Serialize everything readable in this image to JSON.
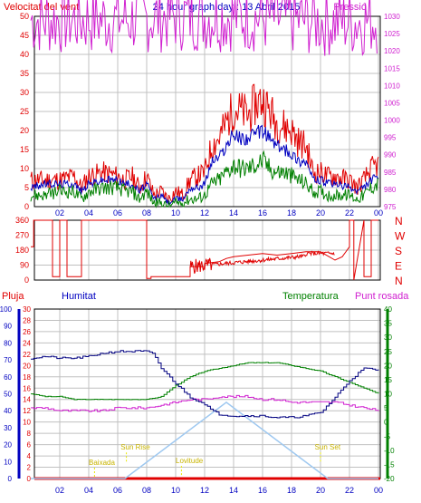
{
  "header": {
    "title": "24 hour graph day : 13 Abril 2015",
    "left_label": "Velocitat del vent",
    "right_label": "Pressió"
  },
  "colors": {
    "red": "#e00000",
    "blue": "#0000c0",
    "green": "#008000",
    "magenta": "#d020d0",
    "navy": "#000080",
    "sky": "#9ec8f0",
    "yellow": "#e8e800",
    "grid": "#c0c0c0"
  },
  "time_ticks": [
    "02",
    "04",
    "06",
    "08",
    "10",
    "12",
    "14",
    "16",
    "18",
    "20",
    "22",
    "00"
  ],
  "chart_data": [
    {
      "type": "line",
      "name": "wind",
      "x_range_hours": [
        0,
        24
      ],
      "ylim": [
        0,
        50
      ],
      "y_ticks": [
        "0",
        "5",
        "10",
        "15",
        "20",
        "25",
        "30",
        "35",
        "40",
        "45",
        "50"
      ],
      "y2lim": [
        975,
        1030
      ],
      "y2_ticks": [
        "975",
        "980",
        "985",
        "990",
        "995",
        "1000",
        "1005",
        "1010",
        "1015",
        "1020",
        "1025",
        "1030"
      ],
      "series": [
        {
          "role": "gust",
          "color": "red",
          "x": [
            0,
            1,
            2,
            3,
            3.5,
            4,
            5,
            6,
            6.5,
            7,
            7.5,
            8,
            8.5,
            9,
            9.5,
            10,
            10.5,
            11,
            11.5,
            12,
            12.5,
            13,
            13.5,
            14,
            14.5,
            15,
            15.5,
            16,
            16.5,
            17,
            17.5,
            18,
            18.5,
            19,
            19.5,
            20,
            20.5,
            21,
            22,
            22.5,
            23,
            23.5,
            24
          ],
          "y": [
            7,
            7,
            7,
            8,
            5,
            8,
            9,
            8,
            7,
            8,
            5,
            8,
            3,
            4,
            2,
            4,
            3,
            7,
            8,
            9,
            16,
            18,
            22,
            26,
            25,
            24,
            27,
            28,
            25,
            22,
            21,
            20,
            17,
            16,
            9,
            9,
            8,
            8,
            7,
            5,
            7,
            10,
            11
          ]
        },
        {
          "role": "average",
          "color": "blue",
          "x": [
            0,
            1,
            2,
            3,
            3.5,
            4,
            5,
            6,
            6.5,
            7,
            7.5,
            8,
            8.5,
            9,
            9.5,
            10,
            10.5,
            11,
            11.5,
            12,
            12.5,
            13,
            13.5,
            14,
            14.5,
            15,
            15.5,
            16,
            16.5,
            17,
            17.5,
            18,
            18.5,
            19,
            19.5,
            20,
            20.5,
            21,
            22,
            22.5,
            23,
            23.5,
            24
          ],
          "y": [
            5,
            6,
            6,
            6,
            4,
            6,
            7,
            7,
            6,
            6,
            4,
            6,
            2,
            3,
            1,
            2,
            2,
            5,
            5,
            6,
            12,
            13,
            16,
            19,
            18,
            18,
            19,
            20,
            18,
            16,
            15,
            14,
            12,
            12,
            7,
            7,
            6,
            6,
            5,
            4,
            5,
            7,
            8
          ]
        },
        {
          "role": "minimum",
          "color": "green",
          "x": [
            0,
            1,
            2,
            3,
            3.5,
            4,
            5,
            6,
            6.5,
            7,
            7.5,
            8,
            8.5,
            9,
            9.5,
            10,
            10.5,
            11,
            11.5,
            12,
            12.5,
            13,
            13.5,
            14,
            14.5,
            15,
            15.5,
            16,
            16.5,
            17,
            17.5,
            18,
            18.5,
            19,
            19.5,
            20,
            20.5,
            21,
            22,
            22.5,
            23,
            23.5,
            24
          ],
          "y": [
            3,
            3,
            4,
            4,
            2,
            4,
            5,
            5,
            4,
            4,
            2,
            4,
            1,
            1,
            0,
            1,
            1,
            2,
            2,
            3,
            6,
            7,
            9,
            11,
            10,
            10,
            11,
            12,
            10,
            9,
            9,
            8,
            7,
            6,
            4,
            4,
            3,
            3,
            3,
            2,
            3,
            5,
            6
          ]
        },
        {
          "role": "pressure",
          "color": "magenta",
          "axis": "right",
          "x": [
            0,
            2,
            4,
            6,
            8,
            10,
            12,
            14,
            16,
            18,
            20,
            22,
            24
          ],
          "y": [
            1029,
            1029,
            1029,
            1029,
            1029.5,
            1030,
            1030,
            1030,
            1029.5,
            1029,
            1028.5,
            1028.5,
            1029
          ]
        }
      ]
    },
    {
      "type": "line",
      "name": "wind-direction",
      "ylim": [
        0,
        360
      ],
      "y_ticks": [
        "0",
        "90",
        "180",
        "270",
        "360"
      ],
      "y2_ticks": [
        "N",
        "W",
        "S",
        "E",
        "N"
      ],
      "series": [
        {
          "color": "red",
          "x": [
            0,
            0.2,
            0.2,
            1.5,
            1.5,
            2,
            2,
            2.5,
            2.5,
            3,
            3,
            3.5,
            3.5,
            4.5,
            4.5,
            8,
            8,
            8.3,
            8.3,
            10,
            10,
            11,
            11,
            12,
            12,
            13,
            13.5,
            14,
            15,
            16,
            17,
            18,
            19,
            20,
            21,
            21.5,
            22,
            22,
            22.3,
            22.3,
            23,
            23,
            23.5,
            23.5,
            24
          ],
          "y": [
            200,
            200,
            360,
            360,
            20,
            20,
            360,
            360,
            20,
            20,
            20,
            20,
            360,
            360,
            360,
            360,
            10,
            10,
            20,
            20,
            20,
            20,
            80,
            80,
            100,
            110,
            130,
            140,
            150,
            160,
            150,
            160,
            170,
            170,
            120,
            140,
            200,
            360,
            360,
            0,
            360,
            20,
            20,
            360,
            360
          ]
        }
      ]
    },
    {
      "type": "line",
      "name": "humidity-temperature",
      "legend": [
        "Pluja",
        "Humitat",
        "Temperatura",
        "Punt rosada"
      ],
      "ylim_humidity": [
        0,
        100
      ],
      "humidity_ticks": [
        "0",
        "10",
        "20",
        "30",
        "40",
        "50",
        "60",
        "70",
        "80",
        "90",
        "100"
      ],
      "rain_ticks": [
        "0",
        "2",
        "4",
        "6",
        "8",
        "10",
        "12",
        "14",
        "16",
        "18",
        "20",
        "22",
        "24",
        "26",
        "28",
        "30"
      ],
      "temp_ticks": [
        "-20",
        "-15",
        "-10",
        "-5",
        "0",
        "5",
        "10",
        "15",
        "20",
        "25",
        "30",
        "35",
        "40"
      ],
      "ylim_temp": [
        -20,
        40
      ],
      "annotations": [
        "Baixada",
        "Sun Rise",
        "Lovitude",
        "Sun Set"
      ],
      "series": [
        {
          "name": "Humitat",
          "color": "navy",
          "x": [
            0,
            1,
            2,
            3,
            4,
            5,
            6,
            7,
            8,
            8.5,
            9,
            10,
            11,
            12,
            12.5,
            13,
            14,
            15,
            16,
            17,
            18,
            19,
            20,
            21,
            22,
            23,
            24
          ],
          "y": [
            71,
            72,
            71,
            71,
            72,
            74,
            75,
            75,
            75,
            73,
            65,
            56,
            48,
            44,
            40,
            38,
            37,
            37,
            37,
            36,
            36,
            37,
            39,
            48,
            58,
            65,
            64
          ]
        },
        {
          "name": "Temperatura",
          "color": "green",
          "x": [
            0,
            1,
            2,
            3,
            4,
            5,
            6,
            7,
            8,
            9,
            10,
            11,
            12,
            13,
            14,
            15,
            16,
            17,
            18,
            19,
            20,
            21,
            22,
            23,
            24
          ],
          "y": [
            10,
            9,
            9,
            8,
            8,
            8,
            8,
            8,
            8,
            9,
            13,
            16,
            18,
            19,
            20,
            21,
            21,
            21,
            20,
            19,
            18,
            16,
            14,
            12,
            10
          ]
        },
        {
          "name": "Punt rosada",
          "color": "magenta",
          "x": [
            0,
            1,
            2,
            3,
            4,
            5,
            6,
            7,
            8,
            9,
            10,
            11,
            12,
            13,
            14,
            15,
            16,
            17,
            18,
            19,
            20,
            21,
            22,
            23,
            24
          ],
          "y": [
            5,
            5,
            4,
            4,
            4,
            4,
            5,
            5,
            5,
            6,
            7,
            8,
            8,
            9,
            9,
            9,
            8,
            8,
            7,
            7,
            7,
            7,
            6,
            5,
            4
          ]
        },
        {
          "name": "solar",
          "color": "sky",
          "x": [
            0,
            6.5,
            13.5,
            20.5,
            24
          ],
          "y": [
            0,
            0,
            45,
            0,
            0
          ]
        }
      ]
    }
  ]
}
